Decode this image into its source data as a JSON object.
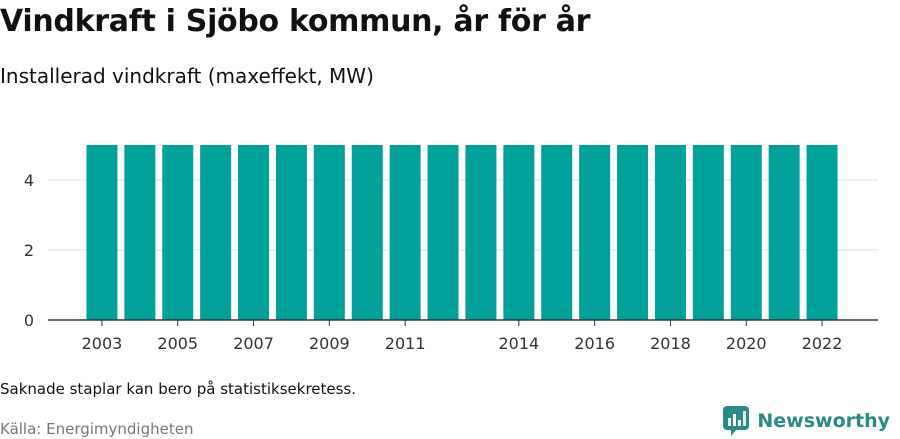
{
  "header": {
    "title": "Vindkraft i Sjöbo kommun, år för år",
    "subtitle": "Installerad vindkraft (maxeffekt, MW)"
  },
  "footer": {
    "note": "Saknade staplar kan bero på statistiksekretess.",
    "source": "Källa: Energimyndigheten",
    "brand": "Newsworthy"
  },
  "colors": {
    "bar": "#00a19a",
    "brand": "#2a8a86"
  },
  "chart_data": {
    "type": "bar",
    "title": "Vindkraft i Sjöbo kommun, år för år",
    "subtitle": "Installerad vindkraft (maxeffekt, MW)",
    "xlabel": "",
    "ylabel": "",
    "categories": [
      "2003",
      "2004",
      "2005",
      "2006",
      "2007",
      "2008",
      "2009",
      "2010",
      "2011",
      "2012",
      "2013",
      "2014",
      "2015",
      "2016",
      "2017",
      "2018",
      "2019",
      "2020",
      "2021",
      "2022"
    ],
    "values": [
      5,
      5,
      5,
      5,
      5,
      5,
      5,
      5,
      5,
      5,
      5,
      5,
      5,
      5,
      5,
      5,
      5,
      5,
      5,
      5
    ],
    "x_tick_labels": [
      "2003",
      "2005",
      "2007",
      "2009",
      "2011",
      "2014",
      "2016",
      "2018",
      "2020",
      "2022"
    ],
    "y_ticks": [
      0,
      2,
      4
    ],
    "ylim": [
      0,
      5
    ],
    "grid": true
  }
}
